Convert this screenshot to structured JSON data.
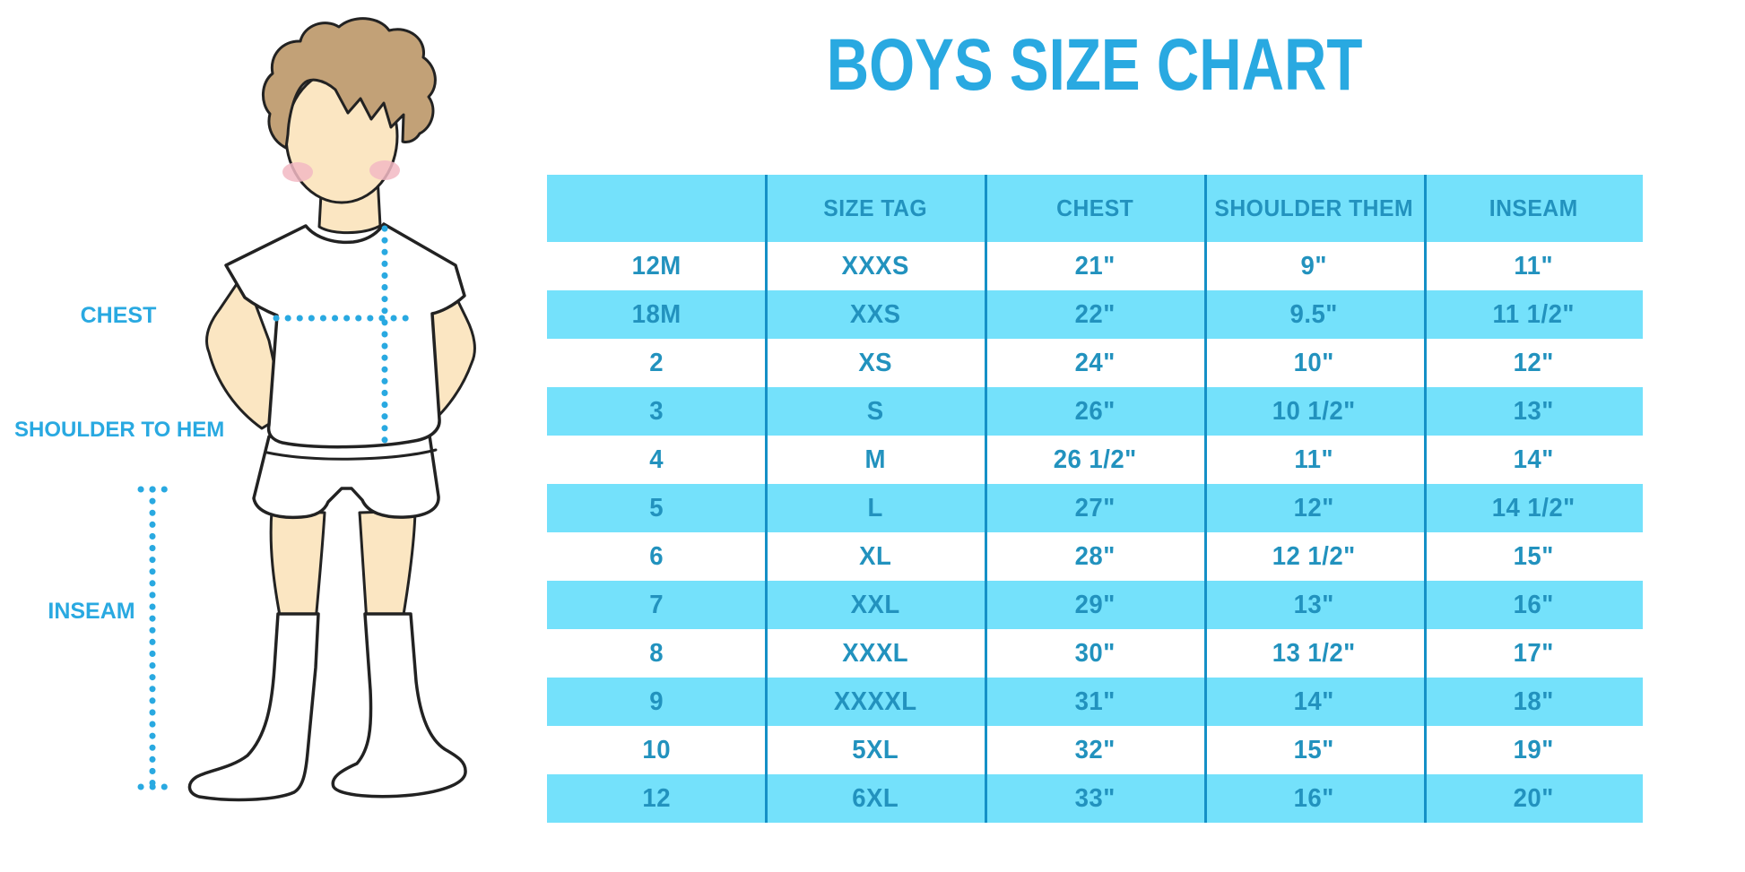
{
  "page_title": "BOYS SIZE CHART",
  "figure": {
    "type": "boy-measurement-illustration",
    "labels": {
      "chest": "CHEST",
      "shoulder_to_hem": "SHOULDER TO HEM",
      "inseam": "INSEAM"
    }
  },
  "chart_data": {
    "type": "table",
    "title": "BOYS SIZE CHART",
    "columns": [
      "",
      "SIZE TAG",
      "CHEST",
      "SHOULDER THEM",
      "INSEAM"
    ],
    "rows": [
      [
        "12M",
        "XXXS",
        "21\"",
        "9\"",
        "11\""
      ],
      [
        "18M",
        "XXS",
        "22\"",
        "9.5\"",
        "11 1/2\""
      ],
      [
        "2",
        "XS",
        "24\"",
        "10\"",
        "12\""
      ],
      [
        "3",
        "S",
        "26\"",
        "10 1/2\"",
        "13\""
      ],
      [
        "4",
        "M",
        "26 1/2\"",
        "11\"",
        "14\""
      ],
      [
        "5",
        "L",
        "27\"",
        "12\"",
        "14 1/2\""
      ],
      [
        "6",
        "XL",
        "28\"",
        "12 1/2\"",
        "15\""
      ],
      [
        "7",
        "XXL",
        "29\"",
        "13\"",
        "16\""
      ],
      [
        "8",
        "XXXL",
        "30\"",
        "13 1/2\"",
        "17\""
      ],
      [
        "9",
        "XXXXL",
        "31\"",
        "14\"",
        "18\""
      ],
      [
        "10",
        "5XL",
        "32\"",
        "15\"",
        "19\""
      ],
      [
        "12",
        "6XL",
        "33\"",
        "16\"",
        "20\""
      ]
    ]
  },
  "colors": {
    "accent": "#29A9E1",
    "band": "#74E1FB",
    "divider": "#1590C6",
    "table-text": "#2292BE",
    "skin": "#FBE6C2",
    "hair": "#C2A177",
    "cheek": "#F2B8C3",
    "outline": "#222222",
    "garment": "#FFFFFF"
  }
}
